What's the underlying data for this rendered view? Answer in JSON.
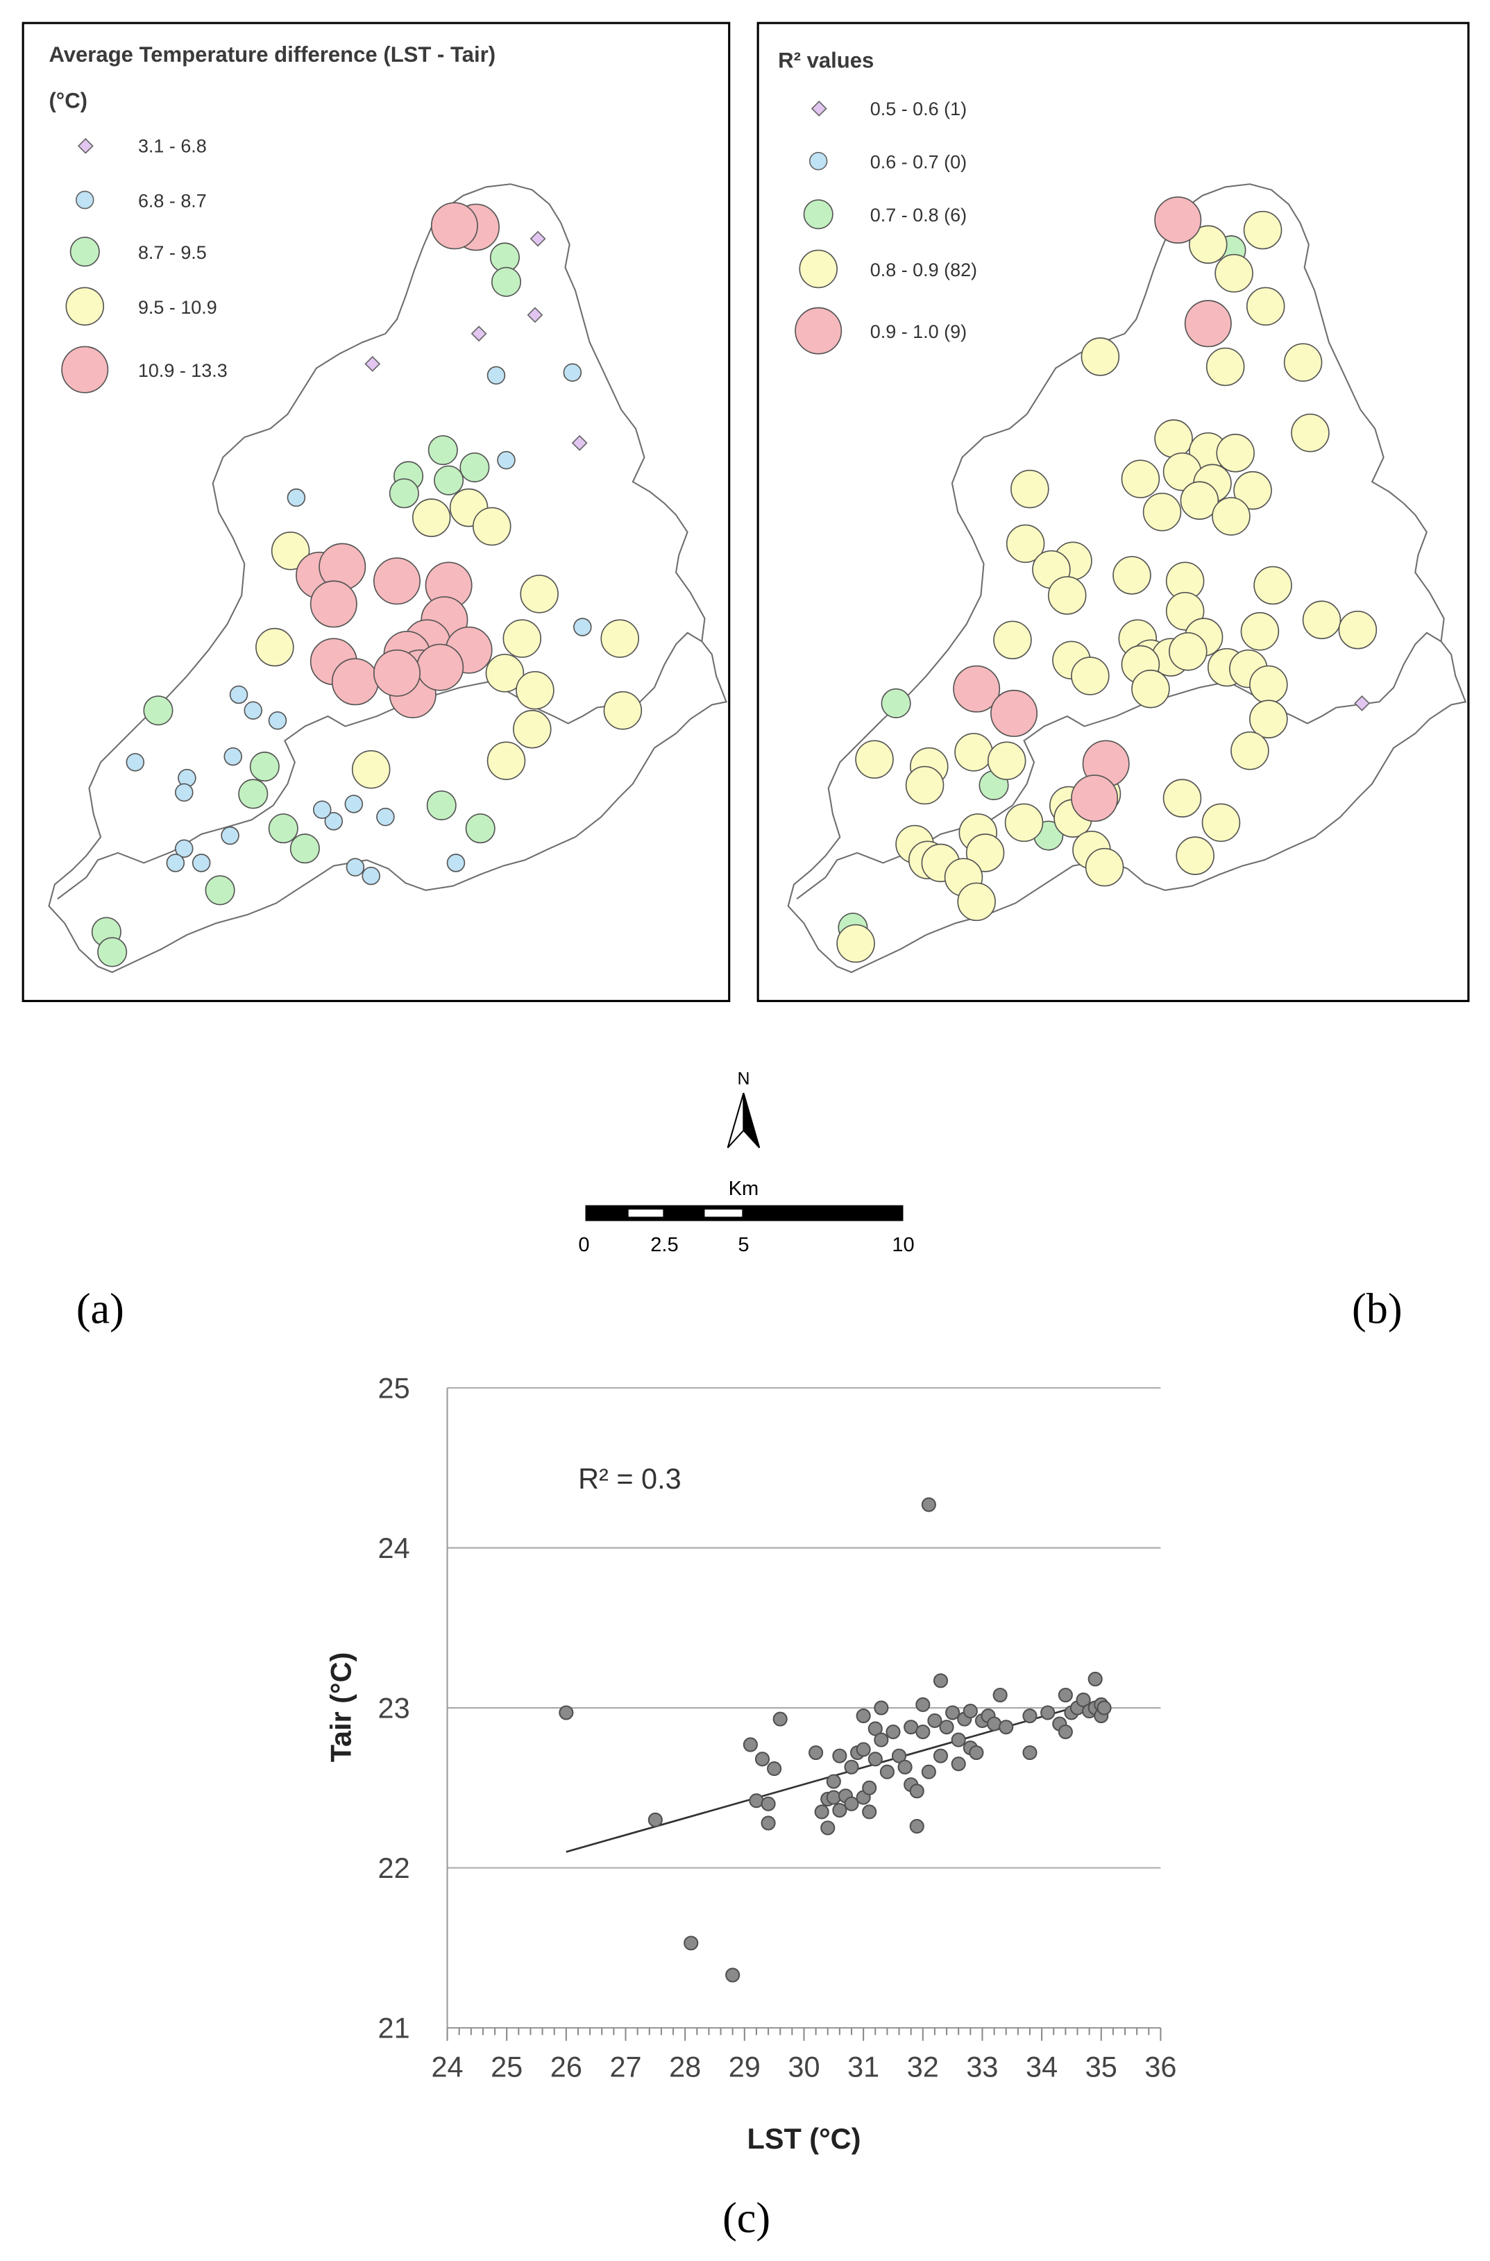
{
  "map_a": {
    "title_line1": "Average Temperature difference (LST - Tair)",
    "title_line2": "(°C)",
    "legend": [
      {
        "label": "3.1 - 6.8",
        "color": "#e2c6f1"
      },
      {
        "label": "6.8 - 8.7",
        "color": "#bfe2f4"
      },
      {
        "label": "8.7 - 9.5",
        "color": "#c3f0c1"
      },
      {
        "label": "9.5 - 10.9",
        "color": "#fbfac2"
      },
      {
        "label": "10.9 - 13.3",
        "color": "#f6b9bd"
      }
    ],
    "panel_label": "(a)"
  },
  "map_b": {
    "title": "R² values",
    "legend": [
      {
        "label": "0.5 - 0.6 (1)",
        "color": "#e2c6f1"
      },
      {
        "label": "0.6 - 0.7 (0)",
        "color": "#bfe2f4"
      },
      {
        "label": "0.7 - 0.8 (6)",
        "color": "#c3f0c1"
      },
      {
        "label": "0.8 - 0.9 (82)",
        "color": "#fbfac2"
      },
      {
        "label": "0.9 - 1.0 (9)",
        "color": "#f6b9bd"
      }
    ],
    "panel_label": "(b)"
  },
  "north_arrow": {
    "label": "N"
  },
  "scale_bar": {
    "unit": "Km",
    "ticks": [
      "0",
      "2.5",
      "5",
      "10"
    ]
  },
  "chart_data": {
    "type": "scatter",
    "panel_label": "(c)",
    "annotation": "R² = 0.3",
    "xlabel": "LST (°C)",
    "ylabel": "Tair (°C)",
    "xlim": [
      24,
      36
    ],
    "ylim": [
      21,
      25
    ],
    "x_ticks": [
      "24",
      "25",
      "26",
      "27",
      "28",
      "29",
      "30",
      "31",
      "32",
      "33",
      "34",
      "35",
      "36"
    ],
    "y_ticks": [
      "21",
      "22",
      "23",
      "24",
      "25"
    ],
    "grid": "horizontal",
    "points": [
      [
        26.0,
        22.97
      ],
      [
        27.5,
        22.3
      ],
      [
        28.1,
        21.53
      ],
      [
        28.8,
        21.33
      ],
      [
        29.1,
        22.77
      ],
      [
        29.2,
        22.42
      ],
      [
        29.3,
        22.68
      ],
      [
        29.4,
        22.4
      ],
      [
        29.4,
        22.28
      ],
      [
        29.5,
        22.62
      ],
      [
        29.6,
        22.93
      ],
      [
        30.2,
        22.72
      ],
      [
        30.3,
        22.35
      ],
      [
        30.4,
        22.43
      ],
      [
        30.4,
        22.25
      ],
      [
        30.5,
        22.54
      ],
      [
        30.5,
        22.44
      ],
      [
        30.6,
        22.7
      ],
      [
        30.6,
        22.36
      ],
      [
        30.7,
        22.45
      ],
      [
        30.8,
        22.63
      ],
      [
        30.8,
        22.4
      ],
      [
        30.9,
        22.72
      ],
      [
        31.0,
        22.95
      ],
      [
        31.0,
        22.74
      ],
      [
        31.0,
        22.44
      ],
      [
        31.1,
        22.5
      ],
      [
        31.1,
        22.35
      ],
      [
        31.2,
        22.87
      ],
      [
        31.2,
        22.68
      ],
      [
        31.3,
        22.8
      ],
      [
        31.3,
        23.0
      ],
      [
        31.4,
        22.6
      ],
      [
        31.5,
        22.85
      ],
      [
        31.6,
        22.7
      ],
      [
        31.7,
        22.63
      ],
      [
        31.8,
        22.52
      ],
      [
        31.8,
        22.88
      ],
      [
        31.9,
        22.26
      ],
      [
        31.9,
        22.48
      ],
      [
        32.0,
        23.02
      ],
      [
        32.0,
        22.85
      ],
      [
        32.1,
        22.6
      ],
      [
        32.1,
        24.27
      ],
      [
        32.2,
        22.92
      ],
      [
        32.3,
        23.17
      ],
      [
        32.3,
        22.7
      ],
      [
        32.4,
        22.88
      ],
      [
        32.5,
        22.97
      ],
      [
        32.6,
        22.65
      ],
      [
        32.6,
        22.8
      ],
      [
        32.7,
        22.93
      ],
      [
        32.8,
        22.75
      ],
      [
        32.8,
        22.98
      ],
      [
        32.9,
        22.72
      ],
      [
        33.0,
        22.92
      ],
      [
        33.1,
        22.95
      ],
      [
        33.2,
        22.9
      ],
      [
        33.3,
        23.08
      ],
      [
        33.4,
        22.88
      ],
      [
        33.8,
        22.72
      ],
      [
        33.8,
        22.95
      ],
      [
        34.1,
        22.97
      ],
      [
        34.3,
        22.9
      ],
      [
        34.4,
        23.08
      ],
      [
        34.4,
        22.85
      ],
      [
        34.5,
        22.97
      ],
      [
        34.6,
        23.0
      ],
      [
        34.7,
        23.05
      ],
      [
        34.8,
        22.98
      ],
      [
        34.9,
        23.0
      ],
      [
        34.9,
        23.18
      ],
      [
        35.0,
        23.02
      ],
      [
        35.0,
        22.95
      ],
      [
        35.05,
        23.0
      ]
    ],
    "trendline": {
      "x": [
        26.0,
        35.0
      ],
      "y": [
        22.1,
        23.05
      ]
    }
  }
}
